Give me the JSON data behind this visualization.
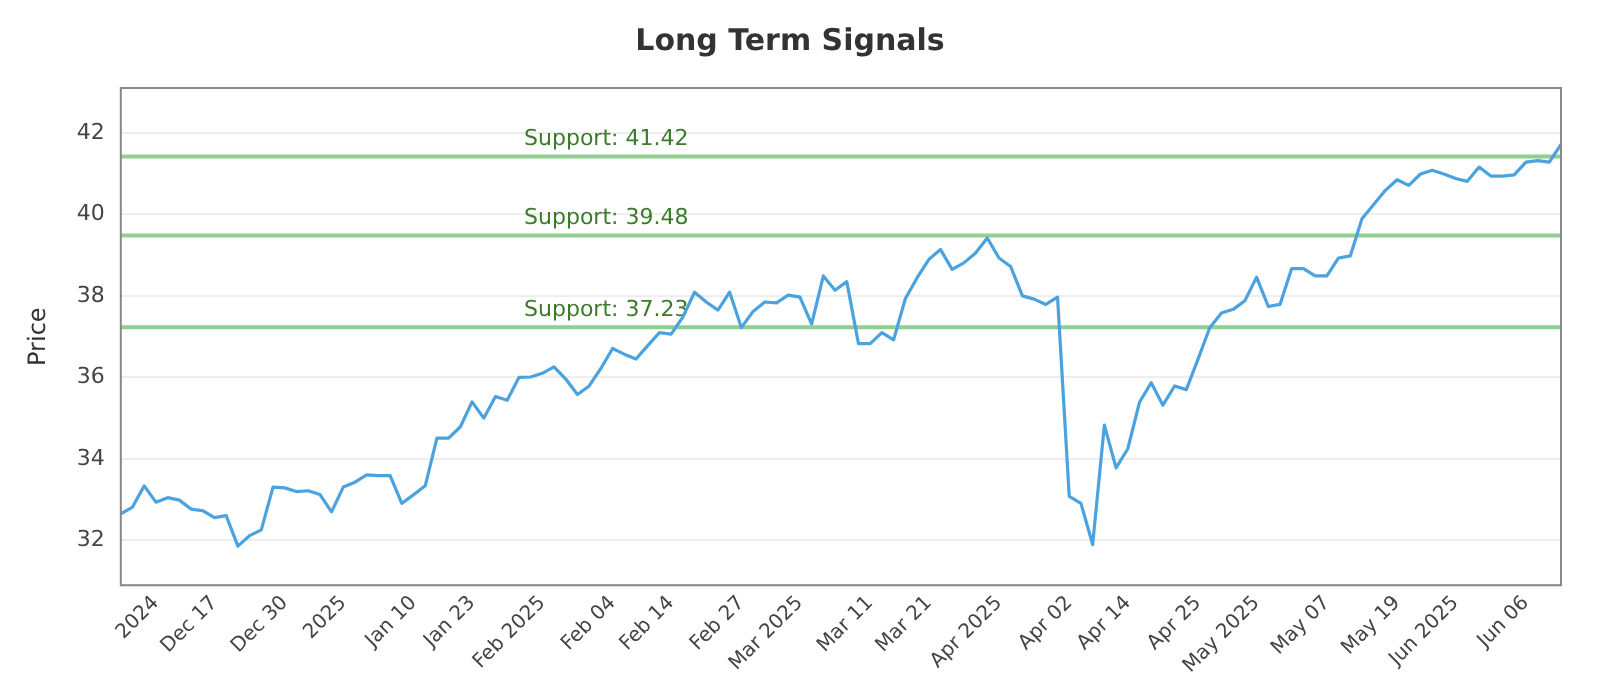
{
  "chart_data": {
    "type": "line",
    "title": "Long Term Signals",
    "ylabel": "Price",
    "categories": [
      null,
      null,
      null,
      "2024",
      null,
      null,
      null,
      null,
      "Dec 17",
      null,
      null,
      null,
      null,
      null,
      "Dec 30",
      null,
      null,
      null,
      null,
      "2025",
      null,
      null,
      null,
      null,
      null,
      "Jan 10",
      null,
      null,
      null,
      null,
      "Jan 23",
      null,
      null,
      null,
      null,
      null,
      "Feb 2025",
      null,
      null,
      null,
      null,
      null,
      "Feb 04",
      null,
      null,
      null,
      null,
      "Feb 14",
      null,
      null,
      null,
      null,
      null,
      "Feb 27",
      null,
      null,
      null,
      null,
      "Mar 2025",
      null,
      null,
      null,
      null,
      null,
      "Mar 11",
      null,
      null,
      null,
      null,
      "Mar 21",
      null,
      null,
      null,
      null,
      null,
      "Apr 2025",
      null,
      null,
      null,
      null,
      null,
      "Apr 02",
      null,
      null,
      null,
      null,
      "Apr 14",
      null,
      null,
      null,
      null,
      null,
      "Apr 25",
      null,
      null,
      null,
      null,
      "May 2025",
      null,
      null,
      null,
      null,
      null,
      "May 07",
      null,
      null,
      null,
      null,
      null,
      "May 19",
      null,
      null,
      null,
      null,
      "Jun 2025",
      null,
      null,
      null,
      null,
      null,
      "Jun 06",
      null,
      null,
      null
    ],
    "series": [
      {
        "color": "#4aa3df",
        "values": [
          32.65,
          32.82,
          33.34,
          32.94,
          33.05,
          32.99,
          32.77,
          32.73,
          32.56,
          32.61,
          31.86,
          32.12,
          32.26,
          33.31,
          33.29,
          33.2,
          33.22,
          33.13,
          32.7,
          33.31,
          33.43,
          33.61,
          33.59,
          33.59,
          32.91,
          33.12,
          33.34,
          34.51,
          34.51,
          34.79,
          35.4,
          35.0,
          35.53,
          35.44,
          36.0,
          36.01,
          36.1,
          36.26,
          35.96,
          35.58,
          35.79,
          36.22,
          36.71,
          36.57,
          36.45,
          36.78,
          37.1,
          37.06,
          37.48,
          38.09,
          37.85,
          37.65,
          38.09,
          37.22,
          37.62,
          37.85,
          37.83,
          38.02,
          37.97,
          37.31,
          38.49,
          38.14,
          38.35,
          36.83,
          36.83,
          37.1,
          36.92,
          37.93,
          38.44,
          38.89,
          39.14,
          38.65,
          38.81,
          39.05,
          39.42,
          38.93,
          38.72,
          38.0,
          37.92,
          37.79,
          37.97,
          33.08,
          32.91,
          31.9,
          34.83,
          33.78,
          34.25,
          35.39,
          35.87,
          35.32,
          35.79,
          35.7,
          36.45,
          37.22,
          37.58,
          37.67,
          37.88,
          38.46,
          37.74,
          37.79,
          38.67,
          38.67,
          38.49,
          38.49,
          38.93,
          38.98,
          39.89,
          40.24,
          40.59,
          40.85,
          40.71,
          40.99,
          41.08,
          40.99,
          40.88,
          40.81,
          41.16,
          40.94,
          40.94,
          40.97,
          41.28,
          41.32,
          41.28,
          41.72
        ]
      }
    ],
    "ylim": [
      30.9,
      43.1
    ],
    "yticks": [
      32,
      34,
      36,
      38,
      40,
      42
    ],
    "grid": "y",
    "legend": false,
    "marker": "none",
    "line_style": "solid",
    "ref_lines": [
      {
        "axis": "y",
        "value": 41.42,
        "label": "Support: 41.42",
        "color": "#8fcf8f"
      },
      {
        "axis": "y",
        "value": 39.48,
        "label": "Support: 39.48",
        "color": "#8fcf8f"
      },
      {
        "axis": "y",
        "value": 37.23,
        "label": "Support: 37.23",
        "color": "#8fcf8f"
      }
    ]
  }
}
